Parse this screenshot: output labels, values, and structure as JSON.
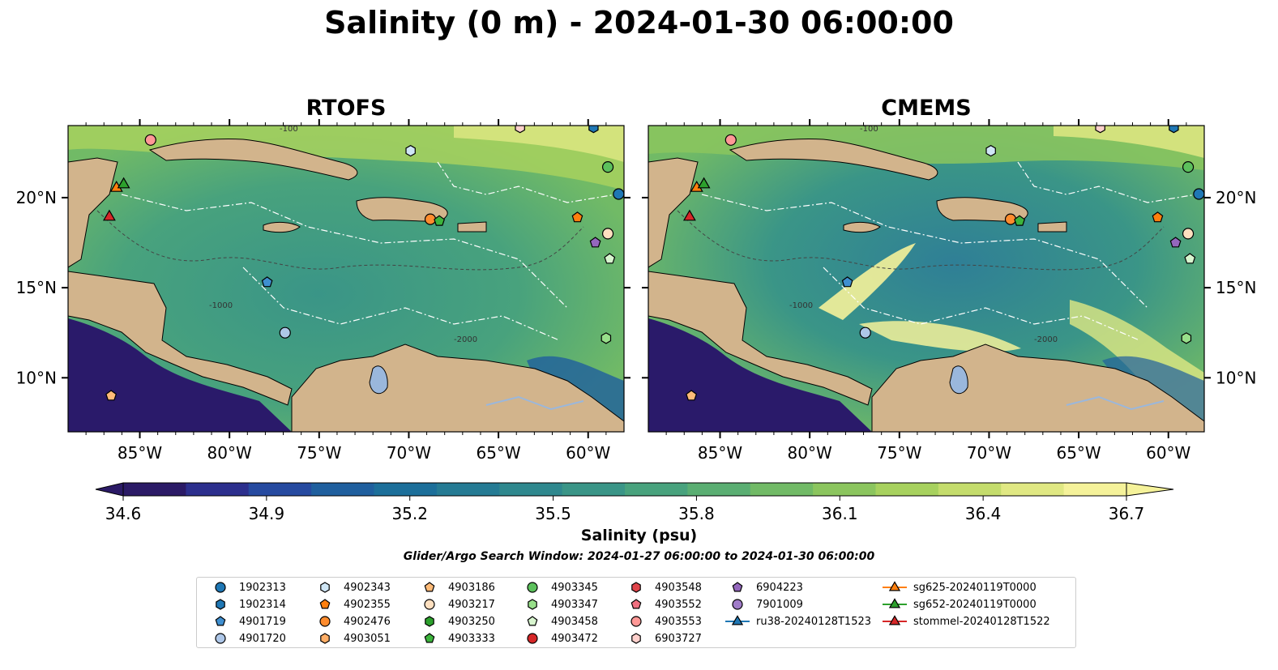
{
  "title": "Salinity (0 m) - 2024-01-30 06:00:00",
  "panels": [
    {
      "title": "RTOFS"
    },
    {
      "title": "CMEMS"
    }
  ],
  "axes": {
    "lon_ticks": [
      "85°W",
      "80°W",
      "75°W",
      "70°W",
      "65°W",
      "60°W"
    ],
    "lat_ticks": [
      "20°N",
      "15°N",
      "10°N"
    ],
    "bathymetry_labels": [
      "-100",
      "-1000",
      "-2000"
    ]
  },
  "colorbar": {
    "label": "Salinity (psu)",
    "ticks": [
      "34.6",
      "34.9",
      "35.2",
      "35.5",
      "35.8",
      "36.1",
      "36.4",
      "36.7"
    ],
    "colors": [
      "#2b1a66",
      "#2c2f8d",
      "#264aa0",
      "#1f5f9e",
      "#1c6f9a",
      "#257b94",
      "#2f888e",
      "#3a9587",
      "#48a27d",
      "#5aae72",
      "#71ba66",
      "#8bc55e",
      "#a7d15e",
      "#c4dc6c",
      "#e0e883",
      "#f5f29a"
    ],
    "extend": "both",
    "range": [
      34.6,
      36.7
    ]
  },
  "search_window": "Glider/Argo Search Window: 2024-01-27 06:00:00 to 2024-01-30 06:00:00",
  "colors": {
    "land": "#d2b48c",
    "lake": "#9ab7dc",
    "ocean_rtofs": "#5fae72",
    "ocean_cmems": "#4b9d80",
    "pacific": "#2a1a6a"
  },
  "legend": [
    {
      "label": "1902313",
      "marker": "circle",
      "color": "#1f77b4"
    },
    {
      "label": "1902314",
      "marker": "hexagon",
      "color": "#1f77b4"
    },
    {
      "label": "4901719",
      "marker": "pentagon",
      "color": "#3f8fd0"
    },
    {
      "label": "4901720",
      "marker": "circle",
      "color": "#aec7e8"
    },
    {
      "label": "4902343",
      "marker": "hexagon",
      "color": "#cfe6f5"
    },
    {
      "label": "4902355",
      "marker": "pentagon",
      "color": "#ff7f0e"
    },
    {
      "label": "4902476",
      "marker": "circle",
      "color": "#ff8c2e"
    },
    {
      "label": "4903051",
      "marker": "hexagon",
      "color": "#ffae66"
    },
    {
      "label": "4903186",
      "marker": "pentagon",
      "color": "#ffbb78"
    },
    {
      "label": "4903217",
      "marker": "circle",
      "color": "#ffe0c0"
    },
    {
      "label": "4903250",
      "marker": "hexagon",
      "color": "#2ca02c"
    },
    {
      "label": "4903333",
      "marker": "pentagon",
      "color": "#3cb43c"
    },
    {
      "label": "4903345",
      "marker": "circle",
      "color": "#5cc05c"
    },
    {
      "label": "4903347",
      "marker": "hexagon",
      "color": "#98df8a"
    },
    {
      "label": "4903458",
      "marker": "pentagon",
      "color": "#d8f5cf"
    },
    {
      "label": "4903472",
      "marker": "circle",
      "color": "#d62728"
    },
    {
      "label": "4903548",
      "marker": "hexagon",
      "color": "#e0444a"
    },
    {
      "label": "4903552",
      "marker": "pentagon",
      "color": "#f07080"
    },
    {
      "label": "4903553",
      "marker": "circle",
      "color": "#ff9896"
    },
    {
      "label": "6903727",
      "marker": "hexagon",
      "color": "#ffd0cc"
    },
    {
      "label": "6904223",
      "marker": "pentagon",
      "color": "#9467bd"
    },
    {
      "label": "7901009",
      "marker": "circle",
      "color": "#a07cc8"
    },
    {
      "label": "ru38-20240128T1523",
      "marker": "triangle-line",
      "color": "#1f77b4"
    },
    {
      "label": "sg625-20240119T0000",
      "marker": "triangle-line",
      "color": "#ff7f0e"
    },
    {
      "label": "sg652-20240119T0000",
      "marker": "triangle-line",
      "color": "#2ca02c"
    },
    {
      "label": "stommel-20240128T1522",
      "marker": "triangle-line",
      "color": "#d62728"
    }
  ],
  "map_data": {
    "extent": {
      "lon": [
        -89.0,
        -58.0
      ],
      "lat": [
        7.0,
        24.0
      ]
    },
    "lon_tick_values": [
      -85,
      -80,
      -75,
      -70,
      -65,
      -60
    ],
    "lat_tick_values": [
      20,
      15,
      10
    ],
    "platforms": [
      {
        "id": "1902313",
        "lon": -58.3,
        "lat": 20.2
      },
      {
        "id": "4901719",
        "lon": -77.9,
        "lat": 15.3
      },
      {
        "id": "4901720",
        "lon": -76.9,
        "lat": 12.5
      },
      {
        "id": "4902343",
        "lon": -69.9,
        "lat": 22.6
      },
      {
        "id": "4902355",
        "lon": -60.6,
        "lat": 18.9
      },
      {
        "id": "4902476",
        "lon": -68.8,
        "lat": 18.8
      },
      {
        "id": "4903186",
        "lon": -86.6,
        "lat": 9.0
      },
      {
        "id": "4903217",
        "lon": -58.9,
        "lat": 18.0
      },
      {
        "id": "4903333",
        "lon": -68.3,
        "lat": 18.7
      },
      {
        "id": "4903345",
        "lon": -58.9,
        "lat": 21.7
      },
      {
        "id": "4903458",
        "lon": -58.8,
        "lat": 16.6
      },
      {
        "id": "4903553",
        "lon": -84.4,
        "lat": 23.2
      },
      {
        "id": "6903727",
        "lon": -63.8,
        "lat": 23.9
      },
      {
        "id": "6904223",
        "lon": -59.6,
        "lat": 17.5
      },
      {
        "id": "1902314",
        "lon": -59.7,
        "lat": 23.9
      },
      {
        "id": "4903347",
        "lon": -59.0,
        "lat": 12.2
      }
    ],
    "gliders": [
      {
        "id": "sg625-20240119T0000",
        "lon": -86.3,
        "lat": 20.6
      },
      {
        "id": "sg652-20240119T0000",
        "lon": -85.9,
        "lat": 20.8
      },
      {
        "id": "stommel-20240128T1522",
        "lon": -86.7,
        "lat": 19.0
      }
    ]
  }
}
